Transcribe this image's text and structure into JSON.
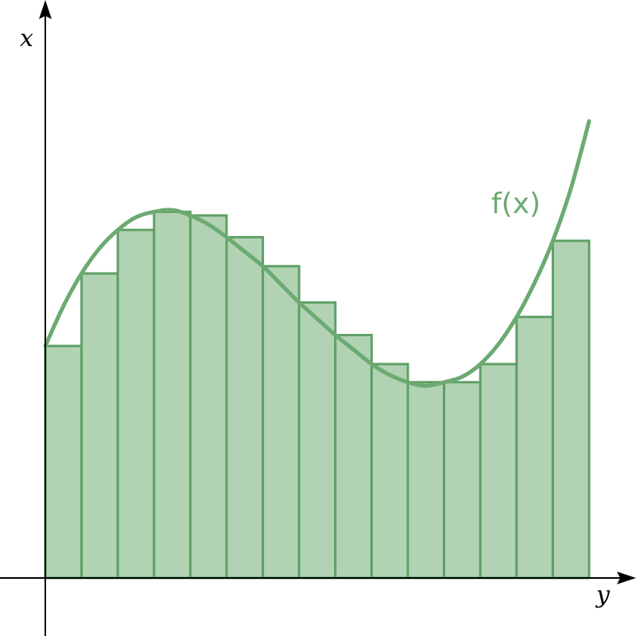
{
  "chart_data": {
    "type": "bar",
    "xlabel": "y",
    "ylabel": "x",
    "curve_label": "f(x)",
    "grid": false,
    "xlim": [
      0,
      16
    ],
    "ylim": [
      0,
      16
    ],
    "bar_width": 1,
    "bars": [
      {
        "x": 0,
        "value": 6.4
      },
      {
        "x": 1,
        "value": 8.4
      },
      {
        "x": 2,
        "value": 9.6
      },
      {
        "x": 3,
        "value": 10.1
      },
      {
        "x": 4,
        "value": 10.0
      },
      {
        "x": 5,
        "value": 9.4
      },
      {
        "x": 6,
        "value": 8.6
      },
      {
        "x": 7,
        "value": 7.6
      },
      {
        "x": 8,
        "value": 6.7
      },
      {
        "x": 9,
        "value": 5.9
      },
      {
        "x": 10,
        "value": 5.4
      },
      {
        "x": 11,
        "value": 5.4
      },
      {
        "x": 12,
        "value": 5.9
      },
      {
        "x": 13,
        "value": 7.2
      },
      {
        "x": 14,
        "value": 9.3
      }
    ],
    "curve": {
      "x": [
        0,
        0.5,
        1,
        1.5,
        2,
        2.5,
        3,
        3.5,
        4,
        4.5,
        5,
        5.5,
        6,
        6.5,
        7,
        7.5,
        8,
        8.5,
        9,
        9.5,
        10,
        10.5,
        11,
        11.5,
        12,
        12.5,
        13,
        13.5,
        14,
        14.5,
        15
      ],
      "y": [
        6.4,
        7.5,
        8.4,
        9.1,
        9.6,
        9.95,
        10.1,
        10.15,
        10.0,
        9.75,
        9.4,
        9.0,
        8.6,
        8.1,
        7.6,
        7.15,
        6.7,
        6.3,
        5.9,
        5.6,
        5.4,
        5.3,
        5.4,
        5.55,
        5.9,
        6.45,
        7.2,
        8.15,
        9.3,
        10.75,
        12.6
      ]
    },
    "colors": {
      "bar_fill": "#b1d3b4",
      "bar_stroke": "#5fa065",
      "curve": "#6caa72",
      "axis": "#000000"
    }
  }
}
